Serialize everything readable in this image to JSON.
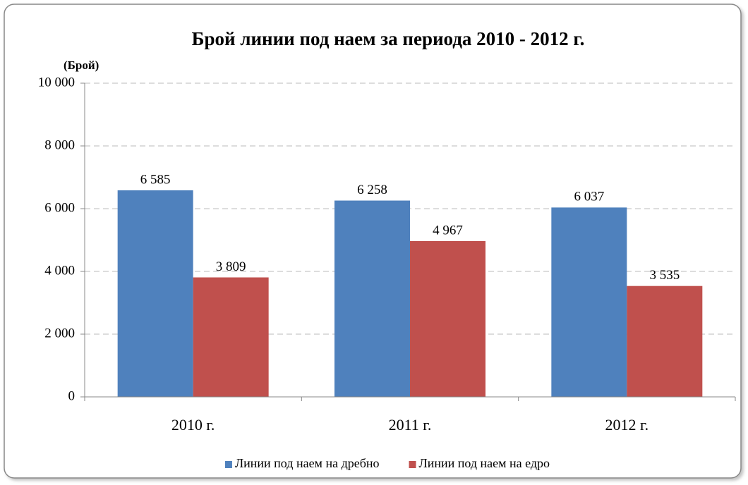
{
  "chart_data": {
    "type": "bar",
    "title": "Брой линии под наем за периода 2010 - 2012 г.",
    "y_label": "(Брой)",
    "categories": [
      "2010 г.",
      "2011 г.",
      "2012 г."
    ],
    "series": [
      {
        "name": "Линии под наем на дребно",
        "color": "#4f81bd",
        "values": [
          6585,
          6258,
          6037
        ],
        "value_labels": [
          "6 585",
          "6 258",
          "6 037"
        ]
      },
      {
        "name": "Линии под наем на едро",
        "color": "#c0504d",
        "values": [
          3809,
          4967,
          3535
        ],
        "value_labels": [
          "3 809",
          "4 967",
          "3 535"
        ]
      }
    ],
    "ylim": [
      0,
      10000
    ],
    "yticks": [
      0,
      {
        "value": 2000,
        "label": "2 000"
      },
      {
        "value": 4000,
        "label": "4 000"
      },
      {
        "value": 6000,
        "label": "6 000"
      },
      {
        "value": 8000,
        "label": "8 000"
      },
      {
        "value": 10000,
        "label": "10 000"
      }
    ],
    "grid": true,
    "legend": "bottom"
  }
}
